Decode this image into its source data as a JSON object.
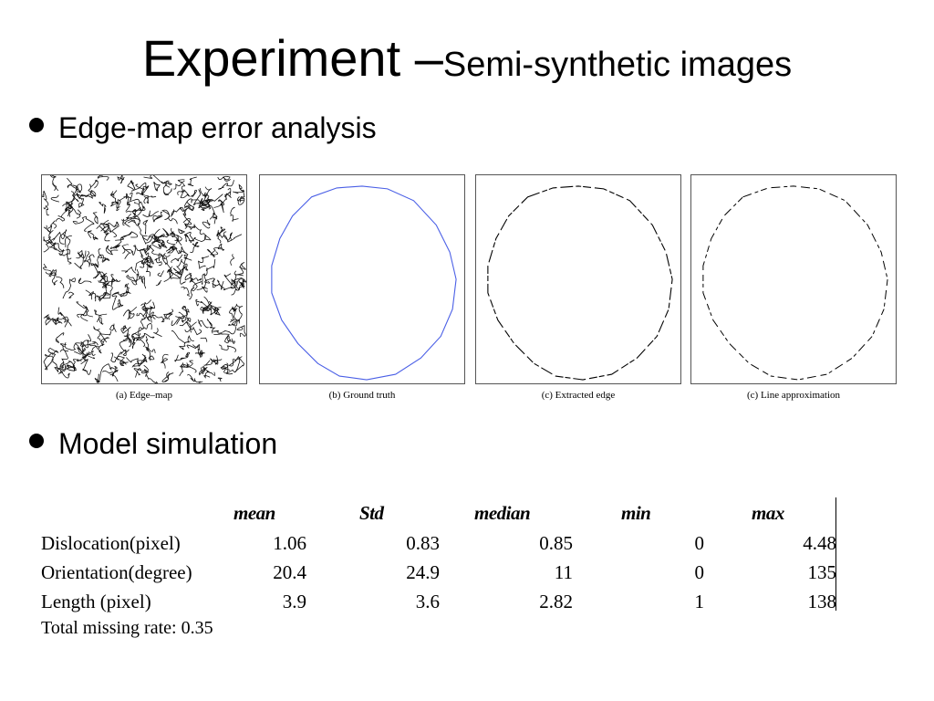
{
  "slide": {
    "title_main": "Experiment –",
    "title_sub": "Semi-synthetic images",
    "bullets": [
      "Edge-map error analysis",
      "Model simulation"
    ]
  },
  "figures": {
    "captions": [
      "(a) Edge–map",
      "(b) Ground truth",
      "(c) Extracted edge",
      "(c) Line approximation"
    ],
    "ground_truth_color": "#4a5fe6"
  },
  "table": {
    "columns": [
      "mean",
      "Std",
      "median",
      "min",
      "max"
    ],
    "rows": [
      {
        "label": "Dislocation(pixel)",
        "values": [
          "1.06",
          "0.83",
          "0.85",
          "0",
          "4.48"
        ]
      },
      {
        "label": "Orientation(degree)",
        "values": [
          "20.4",
          "24.9",
          "11",
          "0",
          "135"
        ]
      },
      {
        "label": "Length (pixel)",
        "values": [
          "3.9",
          "3.6",
          "2.82",
          "1",
          "138"
        ]
      }
    ],
    "footer": "Total missing rate: 0.35"
  }
}
